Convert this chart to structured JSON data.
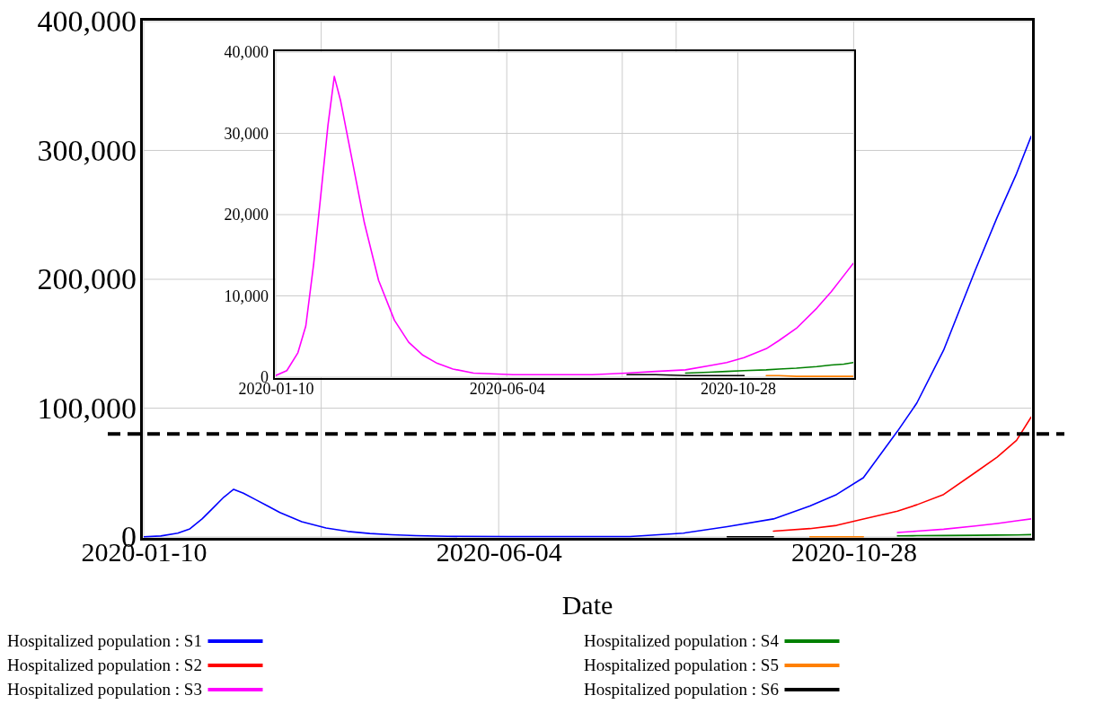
{
  "chart_data": [
    {
      "type": "line",
      "xlabel": "Date",
      "x": [
        "2020-01-10",
        "2020-01-17",
        "2020-01-24",
        "2020-01-29",
        "2020-02-03",
        "2020-02-07",
        "2020-02-12",
        "2020-02-16",
        "2020-02-20",
        "2020-02-25",
        "2020-03-01",
        "2020-03-06",
        "2020-03-15",
        "2020-03-25",
        "2020-04-03",
        "2020-04-12",
        "2020-04-21",
        "2020-05-01",
        "2020-05-14",
        "2020-06-08",
        "2020-07-28",
        "2020-08-19",
        "2020-09-06",
        "2020-09-25",
        "2020-10-10",
        "2020-10-21",
        "2020-11-01",
        "2020-11-15",
        "2020-11-23",
        "2020-12-04",
        "2020-12-17",
        "2020-12-26",
        "2021-01-03",
        "2021-01-09"
      ],
      "xlim": [
        "2020-01-10",
        "2021-01-09"
      ],
      "xticks": [
        {
          "value": "2020-01-10",
          "label": "2020-01-10"
        },
        {
          "value": "2020-03-23",
          "label": null
        },
        {
          "value": "2020-06-04",
          "label": "2020-06-04"
        },
        {
          "value": "2020-08-16",
          "label": null
        },
        {
          "value": "2020-10-28",
          "label": "2020-10-28"
        }
      ],
      "ylim": [
        0,
        400000
      ],
      "yticks": [
        0,
        {
          "value": 100000,
          "label": "100,000"
        },
        {
          "value": 200000,
          "label": "200,000"
        },
        {
          "value": 300000,
          "label": "300,000"
        },
        {
          "value": 400000,
          "label": "400,000"
        }
      ],
      "grid": true,
      "legend": "bottom",
      "line_style": "solid",
      "ref_lines": [
        {
          "axis": "y",
          "value": 80000,
          "color": "#000000",
          "line_style": "dashed"
        }
      ],
      "series": [
        {
          "name": "Hospitalized population : S1",
          "color": "#0000ff",
          "values": [
            200,
            800,
            3000,
            6300,
            14000,
            21500,
            31000,
            37000,
            34000,
            29000,
            24000,
            19000,
            11900,
            7000,
            4300,
            2700,
            1700,
            1000,
            500,
            300,
            300,
            3000,
            8000,
            14000,
            24000,
            33000,
            46000,
            82000,
            104000,
            145000,
            207000,
            248000,
            282000,
            311000
          ]
        },
        {
          "name": "Hospitalized population : S2",
          "color": "#ff0000",
          "values": [
            null,
            null,
            null,
            null,
            null,
            null,
            null,
            null,
            null,
            null,
            null,
            null,
            null,
            null,
            null,
            null,
            null,
            null,
            null,
            null,
            null,
            null,
            null,
            4500,
            6500,
            9000,
            14000,
            20000,
            25000,
            33000,
            50000,
            62000,
            75000,
            93000
          ]
        },
        {
          "name": "Hospitalized population : S3",
          "color": "#ff00ff",
          "values": [
            null,
            null,
            null,
            null,
            null,
            null,
            null,
            null,
            null,
            null,
            null,
            null,
            null,
            null,
            null,
            null,
            null,
            null,
            null,
            null,
            null,
            null,
            null,
            null,
            null,
            null,
            null,
            3500,
            4500,
            6000,
            8500,
            10500,
            12500,
            14000
          ]
        },
        {
          "name": "Hospitalized population : S4",
          "color": "#008000",
          "values": [
            null,
            null,
            null,
            null,
            null,
            null,
            null,
            null,
            null,
            null,
            null,
            null,
            null,
            null,
            null,
            null,
            null,
            null,
            null,
            null,
            null,
            null,
            null,
            null,
            null,
            null,
            null,
            900,
            1000,
            1100,
            1300,
            1500,
            1600,
            1800
          ]
        },
        {
          "name": "Hospitalized population : S5",
          "color": "#ff8000",
          "values": [
            null,
            null,
            null,
            null,
            null,
            null,
            null,
            null,
            null,
            null,
            null,
            null,
            null,
            null,
            null,
            null,
            null,
            null,
            null,
            null,
            null,
            null,
            null,
            null,
            200,
            200,
            200,
            null,
            null,
            null,
            null,
            null,
            null,
            null
          ]
        },
        {
          "name": "Hospitalized population : S6",
          "color": "#000000",
          "values": [
            null,
            null,
            null,
            null,
            null,
            null,
            null,
            null,
            null,
            null,
            null,
            null,
            null,
            null,
            null,
            null,
            null,
            null,
            null,
            null,
            null,
            null,
            200,
            200,
            null,
            null,
            null,
            null,
            null,
            null,
            null,
            null,
            null,
            null
          ]
        }
      ]
    },
    {
      "type": "line",
      "x": [
        "2020-01-10",
        "2020-01-17",
        "2020-01-24",
        "2020-01-29",
        "2020-02-03",
        "2020-02-07",
        "2020-02-12",
        "2020-02-16",
        "2020-02-20",
        "2020-02-25",
        "2020-03-01",
        "2020-03-06",
        "2020-03-15",
        "2020-03-25",
        "2020-04-03",
        "2020-04-12",
        "2020-04-21",
        "2020-05-01",
        "2020-05-14",
        "2020-06-08",
        "2020-07-28",
        "2020-08-19",
        "2020-09-06",
        "2020-09-25",
        "2020-10-10",
        "2020-10-21",
        "2020-11-01",
        "2020-11-15",
        "2020-11-23",
        "2020-12-04",
        "2020-12-17",
        "2020-12-26",
        "2021-01-03",
        "2021-01-09"
      ],
      "xlim": [
        "2020-01-10",
        "2021-01-09"
      ],
      "xticks": [
        {
          "value": "2020-01-10",
          "label": "2020-01-10"
        },
        {
          "value": "2020-03-23",
          "label": null
        },
        {
          "value": "2020-06-04",
          "label": "2020-06-04"
        },
        {
          "value": "2020-08-16",
          "label": null
        },
        {
          "value": "2020-10-28",
          "label": "2020-10-28"
        }
      ],
      "ylim": [
        0,
        40000
      ],
      "yticks": [
        0,
        {
          "value": 10000,
          "label": "10,000"
        },
        {
          "value": 20000,
          "label": "20,000"
        },
        {
          "value": 30000,
          "label": "30,000"
        },
        {
          "value": 40000,
          "label": "40,000"
        }
      ],
      "grid": true,
      "line_style": "solid",
      "series": [
        {
          "color": "#ff00ff",
          "values": [
            200,
            800,
            3000,
            6300,
            14000,
            21500,
            31000,
            37000,
            34000,
            29000,
            24000,
            19000,
            11900,
            7000,
            4300,
            2700,
            1700,
            1000,
            500,
            300,
            300,
            500,
            700,
            900,
            1400,
            1800,
            2400,
            3500,
            4500,
            6000,
            8500,
            10500,
            12500,
            14000
          ]
        },
        {
          "color": "#008000",
          "values": [
            null,
            null,
            null,
            null,
            null,
            null,
            null,
            null,
            null,
            null,
            null,
            null,
            null,
            null,
            null,
            null,
            null,
            null,
            null,
            null,
            null,
            null,
            null,
            500,
            600,
            700,
            800,
            900,
            1000,
            1100,
            1300,
            1500,
            1600,
            1800
          ]
        },
        {
          "color": "#ff8000",
          "values": [
            null,
            null,
            null,
            null,
            null,
            null,
            null,
            null,
            null,
            null,
            null,
            null,
            null,
            null,
            null,
            null,
            null,
            null,
            null,
            null,
            null,
            null,
            null,
            null,
            null,
            null,
            null,
            200,
            200,
            100,
            100,
            100,
            100,
            100
          ]
        },
        {
          "color": "#000000",
          "values": [
            null,
            null,
            null,
            null,
            null,
            null,
            null,
            null,
            null,
            null,
            null,
            null,
            null,
            null,
            null,
            null,
            null,
            null,
            null,
            null,
            null,
            300,
            300,
            200,
            200,
            200,
            200,
            null,
            null,
            null,
            null,
            null,
            null,
            null
          ]
        }
      ]
    }
  ]
}
